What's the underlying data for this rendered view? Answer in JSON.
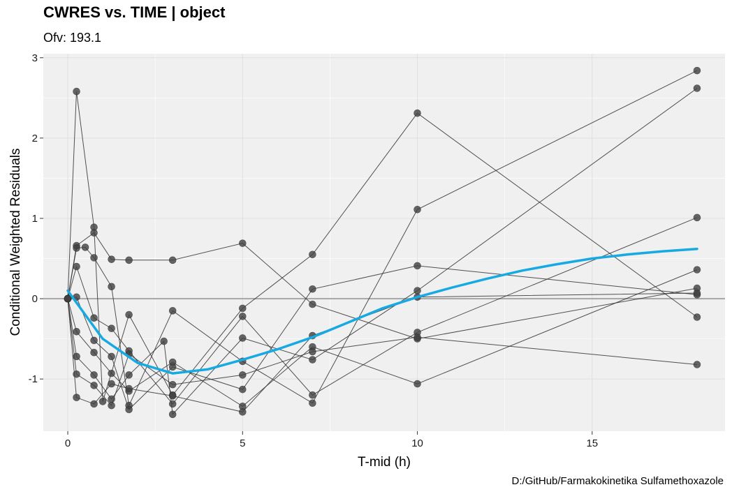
{
  "title": "CWRES vs. TIME | object",
  "subtitle": "Ofv: 193.1",
  "caption": "D:/GitHub/Farmakokinetika Sulfamethoxazole",
  "colors": {
    "panel_bg": "#f0f0f0",
    "grid": "#e0e0e0",
    "points": "#404040",
    "lines": "#333333",
    "smooth": "#17a9e1",
    "reference": "#aaaaaa"
  },
  "chart_data": {
    "type": "scatter",
    "title": "CWRES vs. TIME | object",
    "subtitle": "Ofv: 193.1",
    "xlabel": "T-mid (h)",
    "ylabel": "Conditional Weighted Residuals",
    "xlim": [
      -0.7,
      18.8
    ],
    "ylim": [
      -1.65,
      3.05
    ],
    "x_ticks": [
      0,
      5,
      10,
      15
    ],
    "y_ticks": [
      -1,
      0,
      1,
      2,
      3
    ],
    "grid": true,
    "reference_line_y": 0,
    "subjects": [
      {
        "x": [
          0,
          0.25,
          0.75,
          1,
          1.75,
          3,
          5,
          7,
          10,
          18
        ],
        "y": [
          0,
          2.58,
          0.89,
          -1.28,
          -0.2,
          -1.2,
          -0.12,
          0.55,
          2.31,
          -0.23
        ]
      },
      {
        "x": [
          0,
          0.25,
          0.75,
          1.25,
          1.75,
          3,
          5,
          7,
          10,
          18
        ],
        "y": [
          0,
          0.66,
          0.82,
          0.49,
          0.48,
          0.48,
          0.69,
          -0.07,
          -0.5,
          0.13
        ]
      },
      {
        "x": [
          0,
          0.25,
          0.5,
          0.75,
          1.25,
          1.75,
          3,
          5,
          7,
          10,
          18
        ],
        "y": [
          0,
          0.63,
          0.64,
          0.51,
          0.15,
          -1.33,
          -0.15,
          -0.78,
          -1.3,
          1.11,
          2.84
        ]
      },
      {
        "x": [
          0,
          0.25,
          0.75,
          1.25,
          1.75,
          3,
          5,
          7,
          10,
          18
        ],
        "y": [
          0,
          0.4,
          -0.24,
          -0.37,
          -0.65,
          -1.31,
          -0.22,
          -1.2,
          -0.42,
          1.01
        ]
      },
      {
        "x": [
          0,
          0.25,
          0.75,
          1.25,
          1.75,
          3,
          5,
          7,
          10,
          18
        ],
        "y": [
          0,
          0.02,
          -0.52,
          -0.72,
          -1.38,
          -0.85,
          -1.13,
          0.12,
          0.41,
          0.05
        ]
      },
      {
        "x": [
          0,
          0.25,
          0.75,
          1.25,
          1.75,
          3,
          5,
          7,
          10,
          18
        ],
        "y": [
          0,
          -0.41,
          -0.67,
          -0.93,
          -1.15,
          -0.79,
          -1.34,
          -0.6,
          -1.06,
          0.36
        ]
      },
      {
        "x": [
          0,
          0.25,
          0.75,
          1.25,
          1.75,
          2.75,
          3,
          5,
          7,
          10,
          18
        ],
        "y": [
          0,
          -0.72,
          -0.95,
          -1.25,
          -0.95,
          -0.53,
          -1.44,
          -0.49,
          -0.76,
          0.1,
          2.62
        ]
      },
      {
        "x": [
          0,
          0.25,
          0.75,
          1.25,
          1.75,
          3,
          5,
          7,
          10,
          18
        ],
        "y": [
          0,
          -0.94,
          -1.08,
          -1.33,
          -0.69,
          -1.07,
          -0.95,
          -0.66,
          -0.48,
          -0.82
        ]
      },
      {
        "x": [
          0,
          0.25,
          0.75,
          1.25,
          1.75,
          3,
          5,
          7,
          10,
          18
        ],
        "y": [
          0,
          -1.23,
          -1.31,
          -1.06,
          -1.12,
          -1.21,
          -1.41,
          -0.46,
          0.02,
          0.07
        ]
      }
    ],
    "smooth": {
      "x": [
        0,
        1,
        2,
        3,
        4,
        5,
        6,
        7,
        8,
        9,
        10,
        11,
        12,
        13,
        14,
        15,
        16,
        17,
        18
      ],
      "y": [
        0.1,
        -0.5,
        -0.8,
        -0.93,
        -0.88,
        -0.76,
        -0.63,
        -0.48,
        -0.3,
        -0.12,
        0.02,
        0.14,
        0.25,
        0.35,
        0.43,
        0.5,
        0.55,
        0.59,
        0.62
      ]
    }
  }
}
